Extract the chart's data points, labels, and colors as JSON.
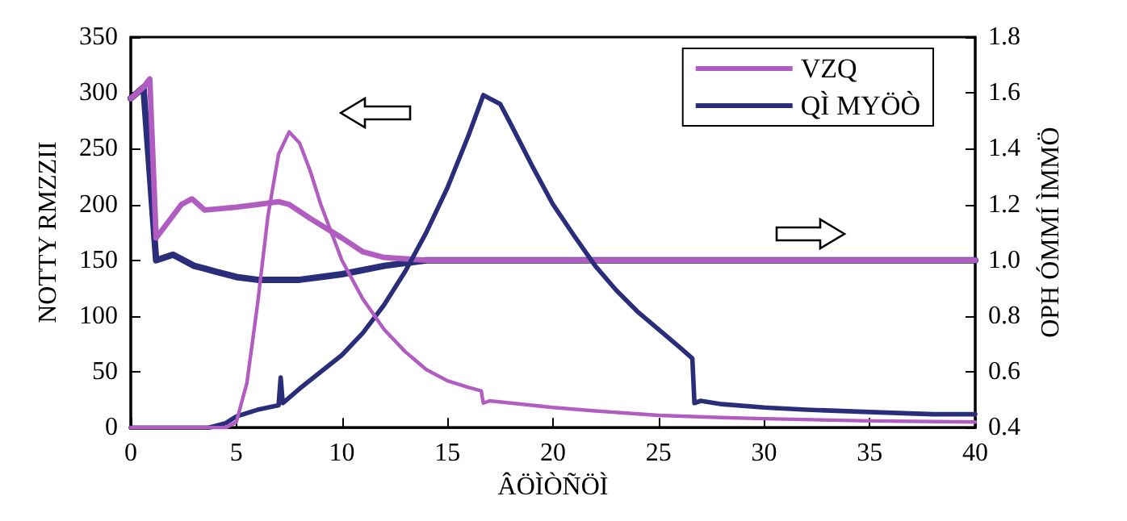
{
  "chart_data": {
    "type": "line",
    "xlabel": "ÂÖÌÒÑÖÌ",
    "ylabel": "NOTTY RMZZII",
    "y2label": "OPH ÓMMÍ ÌMMÖ",
    "legend": "top right",
    "grid": false,
    "marker": "none",
    "line_style": "solid",
    "xlim": [
      0,
      40
    ],
    "xticks": [
      0,
      5,
      10,
      15,
      20,
      25,
      30,
      35,
      40
    ],
    "ylim": [
      0,
      350
    ],
    "yticks": [
      0,
      50,
      100,
      150,
      200,
      250,
      300,
      350
    ],
    "y2lim": [
      0.4,
      1.8
    ],
    "y2ticks": [
      {
        "value": 0.4,
        "label": "0.4"
      },
      {
        "value": 0.6,
        "label": "0.6"
      },
      {
        "value": 0.8,
        "label": "0.8"
      },
      {
        "value": 1.0,
        "label": "1.0"
      },
      {
        "value": 1.2,
        "label": "1.2"
      },
      {
        "value": 1.4,
        "label": "1.4"
      },
      {
        "value": 1.6,
        "label": "1.6"
      },
      {
        "value": 1.8,
        "label": "1.8"
      }
    ],
    "series": [
      {
        "name": "VZQ",
        "color": "#b05cc0",
        "x": [
          0,
          4.5,
          5,
          5.5,
          6,
          6.5,
          7,
          7.5,
          8,
          8.5,
          9,
          10,
          11,
          12,
          13,
          14,
          15,
          16,
          16.6,
          16.7,
          17,
          18,
          20,
          22,
          25,
          28,
          30,
          35,
          40
        ],
        "values": [
          0,
          0,
          5,
          40,
          110,
          190,
          245,
          265,
          255,
          230,
          200,
          150,
          115,
          88,
          68,
          52,
          42,
          36,
          33,
          22,
          24,
          22,
          18,
          15,
          11,
          9,
          8,
          6,
          5
        ]
      },
      {
        "name": "QÌ MYÖÒ",
        "color": "#2a2e7a",
        "x": [
          0,
          3.7,
          4.5,
          5,
          6,
          7,
          7.1,
          7.2,
          8,
          9,
          10,
          11,
          12,
          13,
          14,
          15,
          16,
          16.7,
          17.5,
          18,
          19,
          20,
          21,
          22,
          23,
          24,
          25,
          26,
          26.6,
          26.7,
          27,
          28,
          30,
          32,
          35,
          38,
          40
        ],
        "values": [
          0,
          0,
          4,
          10,
          16,
          20,
          45,
          22,
          35,
          50,
          65,
          85,
          110,
          140,
          175,
          215,
          262,
          298,
          290,
          272,
          235,
          200,
          172,
          145,
          123,
          104,
          88,
          72,
          62,
          22,
          24,
          21,
          18,
          16,
          14,
          12,
          12
        ]
      },
      {
        "color": "#b05cc0",
        "axis": "y2",
        "x": [
          0,
          0.6,
          0.9,
          1.2,
          1.6,
          2.4,
          2.9,
          3.5,
          5,
          6,
          7,
          7.5,
          8.5,
          10,
          11,
          12,
          14,
          20,
          30,
          40
        ],
        "values": [
          1.58,
          1.62,
          1.65,
          1.08,
          1.12,
          1.2,
          1.22,
          1.18,
          1.19,
          1.2,
          1.21,
          1.2,
          1.15,
          1.08,
          1.03,
          1.01,
          1.0,
          1.0,
          1.0,
          1.0
        ]
      },
      {
        "color": "#2a2e7a",
        "axis": "y2",
        "x": [
          0,
          0.6,
          1.2,
          2,
          3,
          4,
          5,
          6,
          7,
          8,
          9,
          10,
          12,
          14,
          16,
          20,
          30,
          40
        ],
        "values": [
          1.58,
          1.62,
          1.0,
          1.02,
          0.98,
          0.96,
          0.94,
          0.93,
          0.93,
          0.93,
          0.94,
          0.95,
          0.98,
          1.0,
          1.0,
          1.0,
          1.0,
          1.0
        ]
      }
    ]
  }
}
